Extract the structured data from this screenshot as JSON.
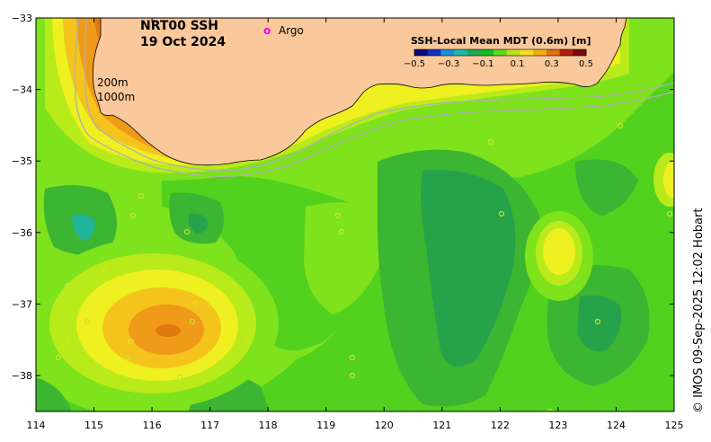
{
  "map": {
    "title_line1": "NRT00 SSH",
    "title_line2": "19 Oct 2024",
    "legend_argo_symbol": "o",
    "legend_argo_label": "Argo",
    "isobath_200": "200m",
    "isobath_1000": "1000m",
    "credit": "© IMOS 09-Sep-2025 12:02 Hobart",
    "colorbar": {
      "title": "SSH-Local Mean MDT (0.6m) [m]",
      "ticks": [
        "−0.5",
        "−0.3",
        "−0.1",
        "0.1",
        "0.3",
        "0.5"
      ],
      "colors": [
        "#0a0a7a",
        "#1030c8",
        "#1a8fd8",
        "#1ab9b0",
        "#1aa85a",
        "#10c020",
        "#60d820",
        "#b8e020",
        "#f0e020",
        "#f0b010",
        "#e07010",
        "#b02010",
        "#7a0a0a"
      ]
    },
    "lon_ticks": [
      "114",
      "115",
      "116",
      "117",
      "118",
      "119",
      "120",
      "121",
      "122",
      "123",
      "124",
      "125"
    ],
    "lat_ticks": [
      "−33",
      "−34",
      "−35",
      "−36",
      "−37",
      "−38"
    ],
    "colors": {
      "land": "#f9c89b",
      "base": "#4fd020",
      "argo": "#ff00ff"
    }
  }
}
